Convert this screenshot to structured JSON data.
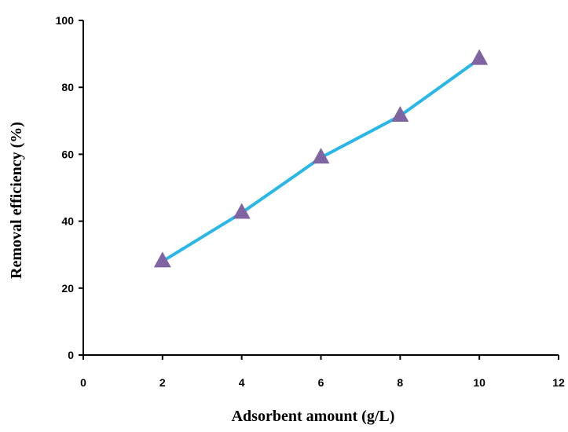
{
  "chart_data": {
    "type": "line",
    "title": "",
    "xlabel": "Adsorbent amount (g/L)",
    "ylabel": "Removal efficiency (%)",
    "xlim": [
      0,
      12
    ],
    "ylim": [
      0,
      100
    ],
    "xticks": [
      0,
      2,
      4,
      6,
      8,
      10,
      12
    ],
    "yticks": [
      0,
      20,
      40,
      60,
      80,
      100
    ],
    "grid": false,
    "series": [
      {
        "x": [
          2,
          4,
          6,
          8,
          10
        ],
        "y": [
          28,
          42.5,
          59,
          71.5,
          88.5
        ],
        "line_color": "#29B6E8",
        "marker": "triangle",
        "marker_color": "#8064A2"
      }
    ]
  }
}
